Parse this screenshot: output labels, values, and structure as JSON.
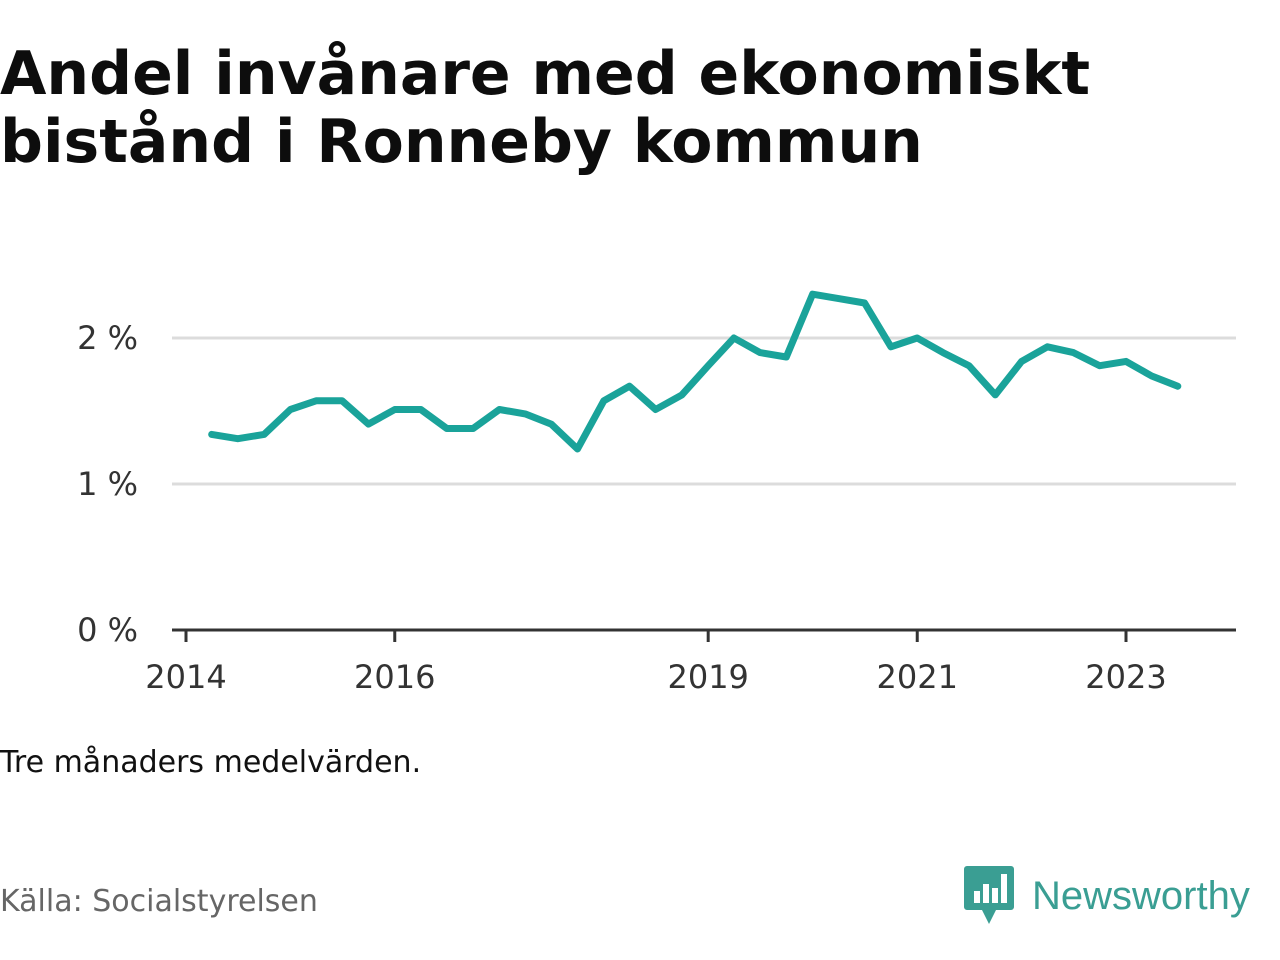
{
  "title": "Andel invånare med ekonomiskt bistånd i Ronneby kommun",
  "note": "Tre månaders medelvärden.",
  "source": "Källa: Socialstyrelsen",
  "brand": {
    "name": "Newsworthy",
    "icon": "bar-chart-speech-bubble-icon"
  },
  "colors": {
    "line": "#1aa39a",
    "brand": "#3a9e93",
    "grid": "#dcdcdc",
    "axis": "#333333"
  },
  "chart_data": {
    "type": "line",
    "title": "Andel invånare med ekonomiskt bistånd i Ronneby kommun",
    "xlabel": "",
    "ylabel": "",
    "y_unit": "%",
    "ylim": [
      0,
      2.5
    ],
    "yticks": [
      0,
      1,
      2
    ],
    "ytick_labels": [
      "0 %",
      "1 %",
      "2 %"
    ],
    "xlim": [
      "2014-01-01",
      "2024-04-30"
    ],
    "xticks": [
      "2014-01-01",
      "2016-01-01",
      "2019-01-01",
      "2021-01-01",
      "2023-01-01"
    ],
    "xtick_labels": [
      "2014",
      "2016",
      "2019",
      "2021",
      "2023"
    ],
    "grid": true,
    "series": [
      {
        "values": [
          {
            "x": "2014-04-01",
            "y": 1.34
          },
          {
            "x": "2014-07-01",
            "y": 1.31
          },
          {
            "x": "2014-10-01",
            "y": 1.34
          },
          {
            "x": "2015-01-01",
            "y": 1.51
          },
          {
            "x": "2015-04-01",
            "y": 1.57
          },
          {
            "x": "2015-07-01",
            "y": 1.57
          },
          {
            "x": "2015-10-01",
            "y": 1.41
          },
          {
            "x": "2016-01-01",
            "y": 1.51
          },
          {
            "x": "2016-04-01",
            "y": 1.51
          },
          {
            "x": "2016-07-01",
            "y": 1.38
          },
          {
            "x": "2016-10-01",
            "y": 1.38
          },
          {
            "x": "2017-01-01",
            "y": 1.51
          },
          {
            "x": "2017-04-01",
            "y": 1.48
          },
          {
            "x": "2017-07-01",
            "y": 1.41
          },
          {
            "x": "2017-10-01",
            "y": 1.24
          },
          {
            "x": "2018-01-01",
            "y": 1.57
          },
          {
            "x": "2018-04-01",
            "y": 1.67
          },
          {
            "x": "2018-07-01",
            "y": 1.51
          },
          {
            "x": "2018-10-01",
            "y": 1.61
          },
          {
            "x": "2019-01-01",
            "y": 1.81
          },
          {
            "x": "2019-04-01",
            "y": 2.0
          },
          {
            "x": "2019-07-01",
            "y": 1.9
          },
          {
            "x": "2019-10-01",
            "y": 1.87
          },
          {
            "x": "2020-01-01",
            "y": 2.3
          },
          {
            "x": "2020-04-01",
            "y": 2.27
          },
          {
            "x": "2020-07-01",
            "y": 2.24
          },
          {
            "x": "2020-10-01",
            "y": 1.94
          },
          {
            "x": "2021-01-01",
            "y": 2.0
          },
          {
            "x": "2021-04-01",
            "y": 1.9
          },
          {
            "x": "2021-07-01",
            "y": 1.81
          },
          {
            "x": "2021-10-01",
            "y": 1.61
          },
          {
            "x": "2022-01-01",
            "y": 1.84
          },
          {
            "x": "2022-04-01",
            "y": 1.94
          },
          {
            "x": "2022-07-01",
            "y": 1.9
          },
          {
            "x": "2022-10-01",
            "y": 1.81
          },
          {
            "x": "2023-01-01",
            "y": 1.84
          },
          {
            "x": "2023-04-01",
            "y": 1.74
          },
          {
            "x": "2023-07-01",
            "y": 1.67
          }
        ]
      }
    ]
  }
}
